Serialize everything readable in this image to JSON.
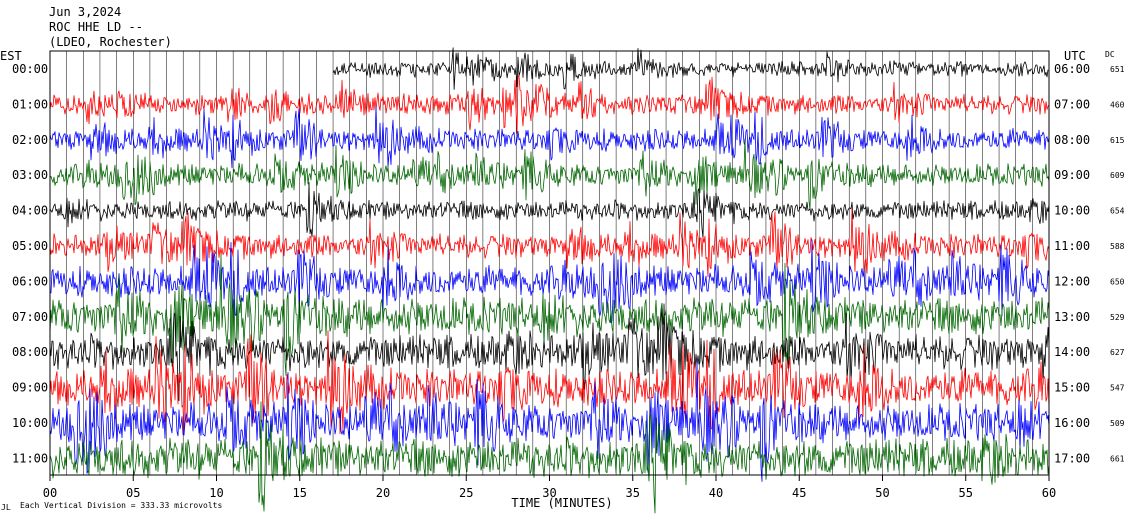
{
  "header": {
    "date": "Jun 3,2024",
    "station": "ROC HHE LD --",
    "network": "(LDEO, Rochester)"
  },
  "axis_labels": {
    "left_zone": "EST",
    "right_zone": "UTC",
    "dc_header": "DC",
    "xlabel": "TIME (MINUTES)"
  },
  "footer": {
    "mark": "JL",
    "note": "Each Vertical Division =  333.33 microvolts"
  },
  "chart_data": {
    "type": "line",
    "title": "Jun 3,2024 ROC HHE LD -- (LDEO, Rochester)",
    "xlabel": "TIME (MINUTES)",
    "ylabel": "",
    "xlim": [
      0,
      60
    ],
    "x_ticks": [
      "00",
      "05",
      "10",
      "15",
      "20",
      "25",
      "30",
      "35",
      "40",
      "45",
      "50",
      "55",
      "60"
    ],
    "grid": true,
    "legend": "none",
    "colors": [
      "#000000",
      "#ff0000",
      "#0000ff",
      "#006600"
    ],
    "traces": [
      {
        "est": "00:00",
        "utc": "06:00",
        "dc": "651",
        "color": "#000000",
        "amp": 0.35,
        "start_min": 17
      },
      {
        "est": "01:00",
        "utc": "07:00",
        "dc": "460",
        "color": "#ff0000",
        "amp": 0.45,
        "start_min": 0
      },
      {
        "est": "02:00",
        "utc": "08:00",
        "dc": "615",
        "color": "#0000ff",
        "amp": 0.5,
        "start_min": 0
      },
      {
        "est": "03:00",
        "utc": "09:00",
        "dc": "609",
        "color": "#006600",
        "amp": 0.5,
        "start_min": 0
      },
      {
        "est": "04:00",
        "utc": "10:00",
        "dc": "654",
        "color": "#000000",
        "amp": 0.45,
        "start_min": 0
      },
      {
        "est": "05:00",
        "utc": "11:00",
        "dc": "588",
        "color": "#ff0000",
        "amp": 0.55,
        "start_min": 0
      },
      {
        "est": "06:00",
        "utc": "12:00",
        "dc": "650",
        "color": "#0000ff",
        "amp": 0.7,
        "start_min": 0
      },
      {
        "est": "07:00",
        "utc": "13:00",
        "dc": "529",
        "color": "#006600",
        "amp": 0.85,
        "start_min": 0
      },
      {
        "est": "08:00",
        "utc": "14:00",
        "dc": "627",
        "color": "#000000",
        "amp": 0.8,
        "start_min": 0
      },
      {
        "est": "09:00",
        "utc": "15:00",
        "dc": "547",
        "color": "#ff0000",
        "amp": 0.85,
        "start_min": 0
      },
      {
        "est": "10:00",
        "utc": "16:00",
        "dc": "509",
        "color": "#0000ff",
        "amp": 0.85,
        "start_min": 0
      },
      {
        "est": "11:00",
        "utc": "17:00",
        "dc": "661",
        "color": "#006600",
        "amp": 0.9,
        "start_min": 0
      }
    ]
  }
}
